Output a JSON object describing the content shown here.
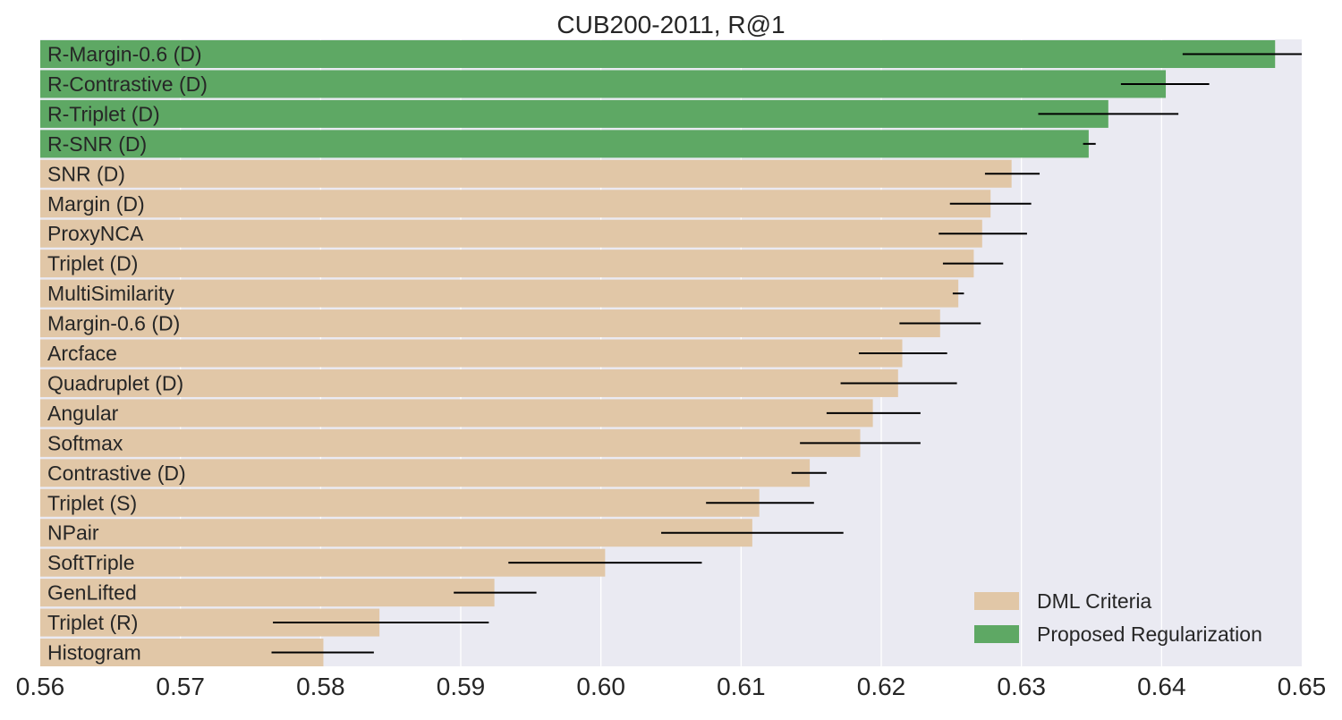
{
  "chart_data": {
    "type": "bar",
    "orientation": "horizontal",
    "title": "CUB200-2011, R@1",
    "xlabel": "",
    "ylabel": "",
    "xlim": [
      0.56,
      0.65
    ],
    "xticks": [
      "0.56",
      "0.57",
      "0.58",
      "0.59",
      "0.60",
      "0.61",
      "0.62",
      "0.63",
      "0.64",
      "0.65"
    ],
    "grid": true,
    "legend_position": "bottom-right",
    "legend": [
      {
        "label": "DML Criteria",
        "color": "#e1c7a7"
      },
      {
        "label": "Proposed Regularization",
        "color": "#5ea864"
      }
    ],
    "bars": [
      {
        "label": "R-Margin-0.6 (D)",
        "value": 0.6481,
        "err_low": 0.6415,
        "err_high": 0.65,
        "group": "Proposed Regularization"
      },
      {
        "label": "R-Contrastive (D)",
        "value": 0.6403,
        "err_low": 0.6371,
        "err_high": 0.6434,
        "group": "Proposed Regularization"
      },
      {
        "label": "R-Triplet (D)",
        "value": 0.6362,
        "err_low": 0.6312,
        "err_high": 0.6412,
        "group": "Proposed Regularization"
      },
      {
        "label": "R-SNR (D)",
        "value": 0.6348,
        "err_low": 0.6344,
        "err_high": 0.6353,
        "group": "Proposed Regularization"
      },
      {
        "label": "SNR (D)",
        "value": 0.6293,
        "err_low": 0.6274,
        "err_high": 0.6313,
        "group": "DML Criteria"
      },
      {
        "label": "Margin (D)",
        "value": 0.6278,
        "err_low": 0.6249,
        "err_high": 0.6307,
        "group": "DML Criteria"
      },
      {
        "label": "ProxyNCA",
        "value": 0.6272,
        "err_low": 0.6241,
        "err_high": 0.6304,
        "group": "DML Criteria"
      },
      {
        "label": "Triplet (D)",
        "value": 0.6266,
        "err_low": 0.6244,
        "err_high": 0.6287,
        "group": "DML Criteria"
      },
      {
        "label": "MultiSimilarity",
        "value": 0.6255,
        "err_low": 0.6251,
        "err_high": 0.6259,
        "group": "DML Criteria"
      },
      {
        "label": "Margin-0.6 (D)",
        "value": 0.6242,
        "err_low": 0.6213,
        "err_high": 0.6271,
        "group": "DML Criteria"
      },
      {
        "label": "Arcface",
        "value": 0.6215,
        "err_low": 0.6184,
        "err_high": 0.6247,
        "group": "DML Criteria"
      },
      {
        "label": "Quadruplet (D)",
        "value": 0.6212,
        "err_low": 0.6171,
        "err_high": 0.6254,
        "group": "DML Criteria"
      },
      {
        "label": "Angular",
        "value": 0.6194,
        "err_low": 0.6161,
        "err_high": 0.6228,
        "group": "DML Criteria"
      },
      {
        "label": "Softmax",
        "value": 0.6185,
        "err_low": 0.6142,
        "err_high": 0.6228,
        "group": "DML Criteria"
      },
      {
        "label": "Contrastive (D)",
        "value": 0.6149,
        "err_low": 0.6136,
        "err_high": 0.6161,
        "group": "DML Criteria"
      },
      {
        "label": "Triplet (S)",
        "value": 0.6113,
        "err_low": 0.6075,
        "err_high": 0.6152,
        "group": "DML Criteria"
      },
      {
        "label": "NPair",
        "value": 0.6108,
        "err_low": 0.6043,
        "err_high": 0.6173,
        "group": "DML Criteria"
      },
      {
        "label": "SoftTriple",
        "value": 0.6003,
        "err_low": 0.5934,
        "err_high": 0.6072,
        "group": "DML Criteria"
      },
      {
        "label": "GenLifted",
        "value": 0.5924,
        "err_low": 0.5895,
        "err_high": 0.5954,
        "group": "DML Criteria"
      },
      {
        "label": "Triplet (R)",
        "value": 0.5842,
        "err_low": 0.5766,
        "err_high": 0.592,
        "group": "DML Criteria"
      },
      {
        "label": "Histogram",
        "value": 0.5802,
        "err_low": 0.5765,
        "err_high": 0.5838,
        "group": "DML Criteria"
      }
    ]
  }
}
